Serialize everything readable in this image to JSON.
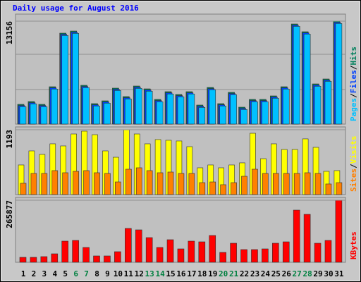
{
  "title": "Daily usage for August 2016",
  "separator": "/",
  "chart_data": [
    {
      "type": "bar",
      "ylim": [
        0,
        13156
      ],
      "yticks": [
        13156
      ],
      "series": [
        {
          "name": "Pages",
          "color": "#00c0ff",
          "values": [
            2223,
            2583,
            2223,
            4475,
            11323,
            11593,
            4656,
            2313,
            2673,
            4295,
            3214,
            4565,
            4205,
            2854,
            3845,
            3484,
            3845,
            2133,
            4385,
            2313,
            3755,
            1862,
            2854,
            2854,
            3304,
            4475,
            12494,
            11503,
            4836,
            5466,
            12856
          ]
        },
        {
          "name": "Files",
          "color": "#0040ff",
          "values": [
            2373,
            2733,
            2373,
            4625,
            11473,
            11743,
            4806,
            2463,
            2823,
            4445,
            3364,
            4715,
            4355,
            3004,
            3995,
            3634,
            3995,
            2283,
            4535,
            2463,
            3905,
            2012,
            3004,
            3004,
            3454,
            4625,
            12644,
            11653,
            4986,
            5616,
            13006
          ]
        },
        {
          "name": "Hits",
          "color": "#00805c",
          "values": [
            2523,
            2883,
            2523,
            4775,
            11623,
            11893,
            4956,
            2613,
            2973,
            4595,
            3514,
            4865,
            4505,
            3154,
            4145,
            3784,
            4145,
            2433,
            4685,
            2613,
            4055,
            2162,
            3154,
            3154,
            3604,
            4775,
            12794,
            11803,
            5136,
            5766,
            13156
          ]
        }
      ]
    },
    {
      "type": "bar",
      "ylim": [
        0,
        1193
      ],
      "yticks": [
        1193
      ],
      "series": [
        {
          "name": "Sites",
          "color": "#ff8000",
          "values": [
            208,
            389,
            389,
            441,
            402,
            428,
            441,
            402,
            389,
            233,
            467,
            493,
            441,
            402,
            415,
            389,
            389,
            220,
            233,
            182,
            220,
            337,
            467,
            389,
            389,
            389,
            389,
            402,
            389,
            195,
            220
          ]
        },
        {
          "name": "Visits",
          "color": "#ffff00",
          "values": [
            545,
            804,
            739,
            934,
            895,
            1115,
            1167,
            1102,
            804,
            687,
            1193,
            1115,
            934,
            1012,
            999,
            986,
            882,
            493,
            545,
            493,
            545,
            584,
            1128,
            661,
            934,
            830,
            830,
            1025,
            869,
            428,
            441
          ]
        }
      ]
    },
    {
      "type": "bar",
      "ylim": [
        0,
        265877
      ],
      "yticks": [
        265877
      ],
      "categories": [
        "1",
        "2",
        "3",
        "4",
        "5",
        "6",
        "7",
        "8",
        "9",
        "10",
        "11",
        "12",
        "13",
        "14",
        "15",
        "16",
        "17",
        "18",
        "19",
        "20",
        "21",
        "22",
        "23",
        "24",
        "25",
        "26",
        "27",
        "28",
        "29",
        "30",
        "31"
      ],
      "label_colors": [
        "#000000",
        "#000000",
        "#000000",
        "#000000",
        "#000000",
        "#008040",
        "#008040",
        "#000000",
        "#000000",
        "#000000",
        "#000000",
        "#000000",
        "#008040",
        "#008040",
        "#000000",
        "#000000",
        "#000000",
        "#000000",
        "#000000",
        "#008040",
        "#008040",
        "#000000",
        "#000000",
        "#000000",
        "#000000",
        "#000000",
        "#008040",
        "#008040",
        "#000000",
        "#000000",
        "#000000"
      ],
      "series": [
        {
          "name": "KBytes",
          "color": "#ff0000",
          "values": [
            21147,
            21147,
            24168,
            36252,
            90630,
            93651,
            63441,
            27189,
            27189,
            45315,
            145008,
            138966,
            105735,
            63441,
            96672,
            57399,
            90630,
            87609,
            114798,
            42294,
            81567,
            54378,
            54378,
            57399,
            81567,
            87609,
            223554,
            205428,
            81567,
            93651,
            265877
          ]
        }
      ]
    }
  ]
}
